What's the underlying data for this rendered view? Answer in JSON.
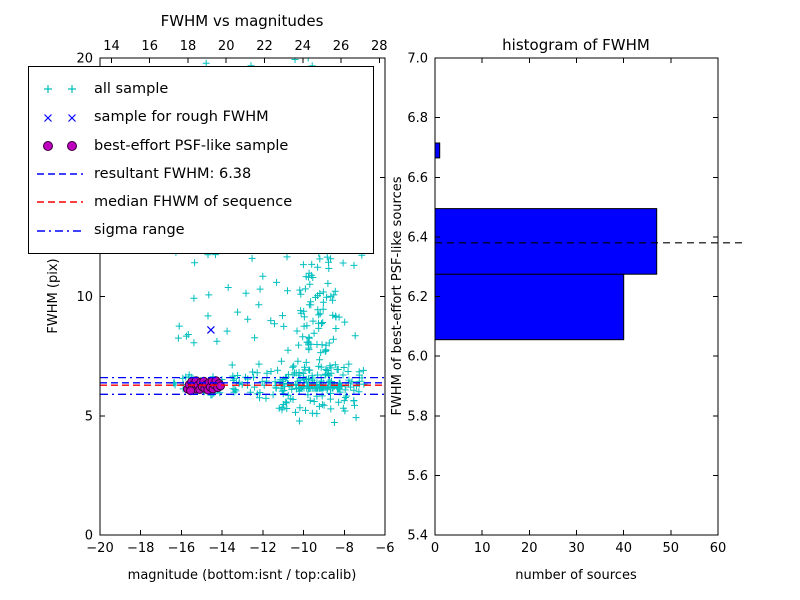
{
  "legend": {
    "items": [
      {
        "label": "all sample",
        "marker": "plus",
        "color": "#00bfbf"
      },
      {
        "label": "sample for rough FWHM",
        "marker": "cross",
        "color": "#0000ff"
      },
      {
        "label": "best-effort PSF-like sample",
        "marker": "circle",
        "color": "#bf00bf",
        "edge_color": "#380038"
      },
      {
        "label": "resultant FWHM: 6.38",
        "marker": "dashed-line",
        "color": "#0000ff"
      },
      {
        "label": "median FHWM of sequence",
        "marker": "dashed-line",
        "color": "#ff0000"
      },
      {
        "label": "sigma range",
        "marker": "dashdot-line",
        "color": "#0000ff"
      }
    ]
  },
  "chart_data": [
    {
      "type": "scatter",
      "title": "FWHM vs magnitudes",
      "xlabel": "magnitude (bottom:isnt / top:calib)",
      "ylabel": "FWHM (pix)",
      "xlim": [
        -20,
        -6
      ],
      "ylim": [
        0,
        20
      ],
      "top_xlim": [
        13.4,
        28.3
      ],
      "xtick_values": [
        -20,
        -18,
        -16,
        -14,
        -12,
        -10,
        -8,
        -6
      ],
      "xtick_labels": [
        "−20",
        "−18",
        "−16",
        "−14",
        "−12",
        "−10",
        "−8",
        "−6"
      ],
      "ytick_values": [
        0,
        5,
        10,
        15,
        20
      ],
      "ytick_labels": [
        "0",
        "5",
        "10",
        "15",
        "20"
      ],
      "top_xtick_values": [
        14,
        16,
        18,
        20,
        22,
        24,
        26,
        28
      ],
      "top_xtick_labels": [
        "14",
        "16",
        "18",
        "20",
        "22",
        "24",
        "26",
        "28"
      ],
      "legend_position": "upper left",
      "grid": false,
      "series": [
        {
          "name": "all sample",
          "marker": "plus",
          "color": "#00bfbf",
          "seed": 13,
          "clusters": [
            {
              "count": 270,
              "mag": {
                "dist": "normal",
                "mean": -9.4,
                "sd": 0.85,
                "min": -11.6,
                "max": -6.9
              },
              "fwhm": {
                "dist": "power",
                "base": 6.15,
                "range": 13.85,
                "exp": 3
              }
            },
            {
              "count": 130,
              "mag": {
                "dist": "uniform",
                "min": -16.4,
                "max": -7.1
              },
              "fwhm": {
                "dist": "normal",
                "mean": 6.3,
                "sd": 0.33,
                "min": 5.2,
                "max": 7.6
              }
            },
            {
              "count": 65,
              "mag": {
                "dist": "uniform",
                "min": -16.5,
                "max": -10.2
              },
              "fwhm": {
                "dist": "uniform",
                "min": 7.2,
                "max": 20
              }
            },
            {
              "count": 25,
              "mag": {
                "dist": "uniform",
                "min": -11.3,
                "max": -7.3
              },
              "fwhm": {
                "dist": "uniform",
                "min": 4.7,
                "max": 6.0
              }
            }
          ]
        },
        {
          "name": "sample for rough FWHM",
          "marker": "cross",
          "color": "#0000ff",
          "points": [
            [
              -14.55,
              8.6
            ],
            [
              -15.2,
              6.32
            ],
            [
              -14.85,
              6.2
            ],
            [
              -15.5,
              6.28
            ],
            [
              -14.6,
              6.38
            ]
          ]
        },
        {
          "name": "best-effort PSF-like sample",
          "marker": "circle",
          "color": "#bf00bf",
          "edge_color": "#380038",
          "points": [
            [
              -15.7,
              6.12
            ],
            [
              -15.62,
              6.3
            ],
            [
              -15.5,
              6.42
            ],
            [
              -15.45,
              6.2
            ],
            [
              -15.38,
              6.33
            ],
            [
              -15.3,
              6.12
            ],
            [
              -15.28,
              6.47
            ],
            [
              -15.18,
              6.28
            ],
            [
              -15.1,
              6.1
            ],
            [
              -15.05,
              6.4
            ],
            [
              -14.98,
              6.22
            ],
            [
              -14.9,
              6.45
            ],
            [
              -14.85,
              6.15
            ],
            [
              -14.78,
              6.3
            ],
            [
              -14.7,
              6.08
            ],
            [
              -14.65,
              6.38
            ],
            [
              -14.58,
              6.2
            ],
            [
              -14.5,
              6.44
            ],
            [
              -14.45,
              6.12
            ],
            [
              -14.38,
              6.3
            ],
            [
              -14.3,
              6.47
            ],
            [
              -14.22,
              6.18
            ],
            [
              -14.15,
              6.35
            ],
            [
              -15.55,
              6.05
            ],
            [
              -14.08,
              6.25
            ]
          ]
        }
      ],
      "hlines": [
        {
          "name": "resultant FWHM: 6.38",
          "y": 6.38,
          "style": "dashed",
          "color": "#0000ff"
        },
        {
          "name": "median FHWM of sequence",
          "y": 6.28,
          "style": "dashed",
          "color": "#ff0000"
        },
        {
          "name": "sigma range",
          "y": 6.6,
          "style": "dashdot",
          "color": "#0000ff"
        },
        {
          "name": "sigma range",
          "y": 5.9,
          "style": "dashdot",
          "color": "#0000ff"
        }
      ]
    },
    {
      "type": "bar",
      "orientation": "horizontal",
      "title": "histogram of FWHM",
      "xlabel": "number of sources",
      "ylabel": "FWHM of best-effort PSF-like sources",
      "xlim": [
        0,
        60
      ],
      "ylim": [
        5.4,
        7.0
      ],
      "xtick_values": [
        0,
        10,
        20,
        30,
        40,
        50,
        60
      ],
      "xtick_labels": [
        "0",
        "10",
        "20",
        "30",
        "40",
        "50",
        "60"
      ],
      "ytick_values": [
        5.4,
        5.6,
        5.8,
        6.0,
        6.2,
        6.4,
        6.6,
        6.8,
        7.0
      ],
      "ytick_labels": [
        "5.4",
        "5.6",
        "5.8",
        "6.0",
        "6.2",
        "6.4",
        "6.6",
        "6.8",
        "7.0"
      ],
      "grid": false,
      "bars": [
        {
          "fwhm_min": 6.055,
          "fwhm_max": 6.275,
          "count": 40
        },
        {
          "fwhm_min": 6.275,
          "fwhm_max": 6.495,
          "count": 47
        },
        {
          "fwhm_min": 6.665,
          "fwhm_max": 6.715,
          "count": 1
        }
      ],
      "bar_color": "#0000ff",
      "bar_edge_color": "#000000",
      "reference_line": {
        "label": "resultant FWHM",
        "y": 6.38,
        "style": "dashed",
        "color": "#000000"
      }
    }
  ]
}
